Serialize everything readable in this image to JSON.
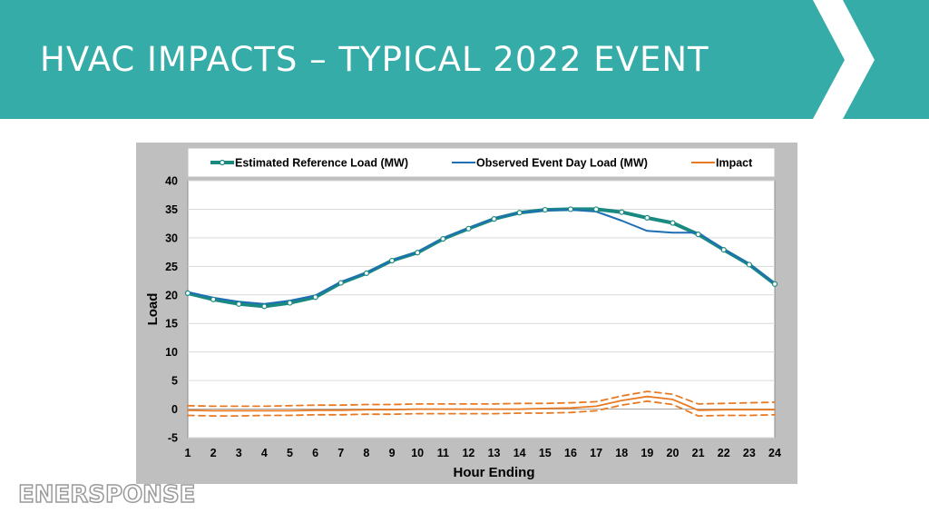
{
  "slide": {
    "title": "HVAC IMPACTS – TYPICAL 2022 EVENT",
    "accent_color": "#35aca8",
    "logo_text": "ENERSPONSE"
  },
  "chart_data": {
    "type": "line",
    "title": "",
    "xlabel": "Hour Ending",
    "ylabel": "Load",
    "x": [
      1,
      2,
      3,
      4,
      5,
      6,
      7,
      8,
      9,
      10,
      11,
      12,
      13,
      14,
      15,
      16,
      17,
      18,
      19,
      20,
      21,
      22,
      23,
      24
    ],
    "ylim": [
      -5,
      40
    ],
    "yticks": [
      -5,
      0,
      5,
      10,
      15,
      20,
      25,
      30,
      35,
      40
    ],
    "grid": true,
    "legend_position": "top",
    "series": [
      {
        "name": "Estimated Reference Load (MW)",
        "color": "#1a8a80",
        "marker": "circle",
        "values": [
          20.3,
          19.2,
          18.4,
          18.0,
          18.6,
          19.6,
          22.1,
          23.8,
          26.0,
          27.4,
          29.8,
          31.6,
          33.3,
          34.4,
          34.9,
          35.0,
          35.0,
          34.5,
          33.5,
          32.6,
          30.6,
          27.9,
          25.3,
          21.9
        ]
      },
      {
        "name": "Observed Event Day Load (MW)",
        "color": "#1f6fb5",
        "marker": "none",
        "values": [
          20.5,
          19.5,
          18.8,
          18.4,
          19.0,
          19.9,
          22.3,
          23.9,
          26.0,
          27.5,
          29.9,
          31.7,
          33.4,
          34.4,
          34.8,
          34.9,
          34.6,
          33.0,
          31.2,
          30.9,
          30.9,
          28.0,
          25.4,
          22.0
        ]
      },
      {
        "name": "Impact",
        "color": "#e87a23",
        "marker": "none",
        "values": [
          -0.2,
          -0.3,
          -0.3,
          -0.3,
          -0.3,
          -0.2,
          -0.2,
          -0.1,
          -0.1,
          0.0,
          0.0,
          0.0,
          0.0,
          0.0,
          0.1,
          0.2,
          0.5,
          1.5,
          2.2,
          1.7,
          -0.2,
          -0.1,
          -0.1,
          -0.1
        ]
      },
      {
        "name": "",
        "color": "#e87a23",
        "marker": "none",
        "dashed": true,
        "values": [
          0.6,
          0.5,
          0.5,
          0.5,
          0.6,
          0.7,
          0.7,
          0.8,
          0.8,
          0.9,
          0.9,
          0.9,
          0.9,
          1.0,
          1.0,
          1.1,
          1.3,
          2.3,
          3.1,
          2.6,
          0.9,
          1.0,
          1.1,
          1.2
        ]
      },
      {
        "name": "",
        "color": "#e87a23",
        "marker": "none",
        "dashed": true,
        "values": [
          -1.1,
          -1.2,
          -1.2,
          -1.1,
          -1.1,
          -1.0,
          -1.0,
          -0.9,
          -0.9,
          -0.8,
          -0.8,
          -0.8,
          -0.8,
          -0.7,
          -0.7,
          -0.6,
          -0.3,
          0.7,
          1.4,
          0.8,
          -1.2,
          -1.1,
          -1.1,
          -1.0
        ]
      }
    ]
  }
}
